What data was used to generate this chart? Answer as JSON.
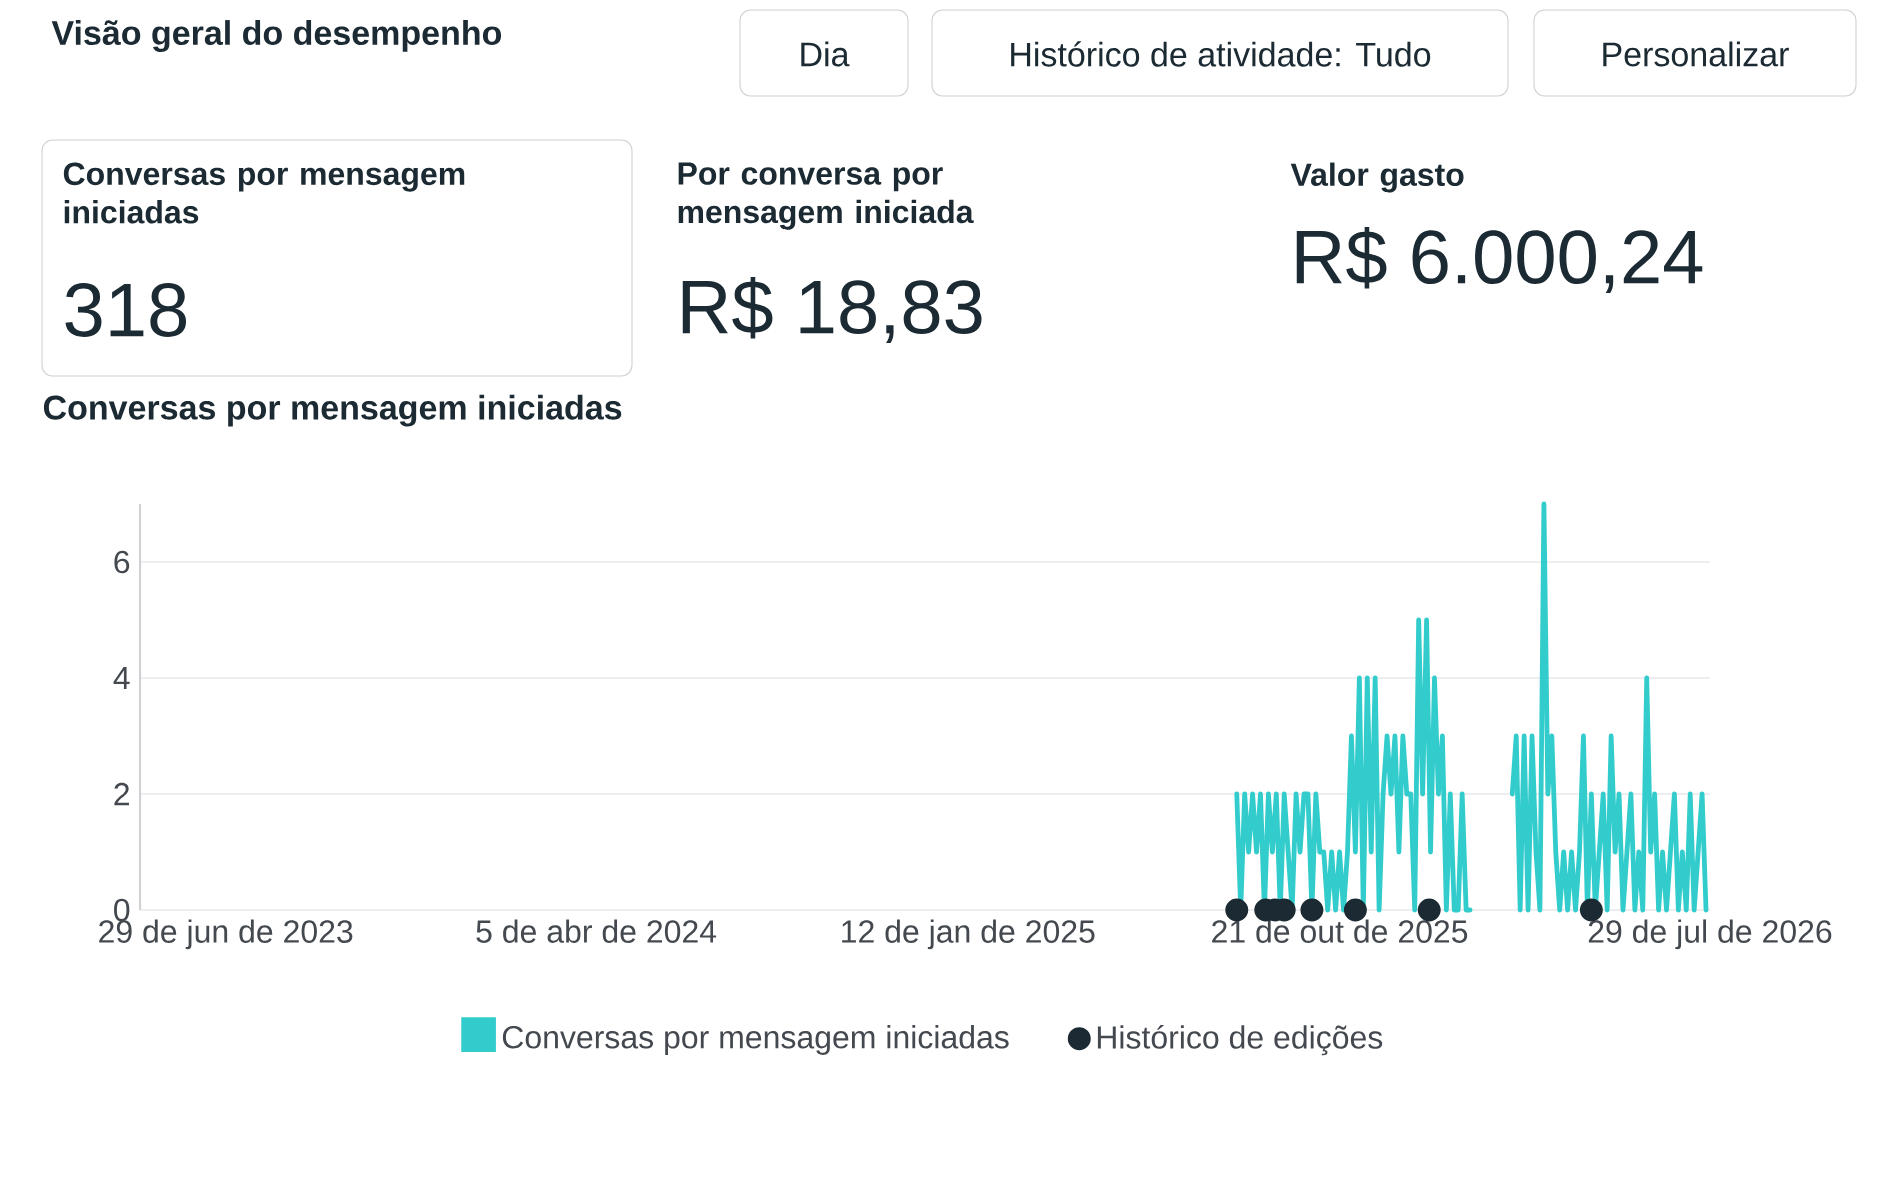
{
  "chart_data": [
    {
      "type": "other",
      "title": "Visão geral do desempenho",
      "annotations": [
        "Dia",
        "Histórico de atividade: Tudo",
        "Personalizar",
        "Conversas por mensagem iniciadas",
        "318",
        "Por conversa por mensagem iniciada",
        "R$ 18,83",
        "Valor gasto",
        "R$ 6.000,24"
      ]
    },
    {
      "type": "line",
      "title": "Conversas por mensagem iniciadas",
      "xlim": [
        "2023-04-25",
        "2026-07-29"
      ],
      "xticks": [
        {
          "value": "2023-06-29",
          "label": "29 de jun de 2023"
        },
        {
          "value": "2024-04-05",
          "label": "5 de abr de 2024"
        },
        {
          "value": "2025-01-12",
          "label": "12 de jan de 2025"
        },
        {
          "value": "2025-10-21",
          "label": "21 de out de 2025"
        },
        {
          "value": "2026-07-29",
          "label": "29 de jul de 2026"
        }
      ],
      "ylim": [
        0,
        7
      ],
      "yticks": [
        0,
        2,
        4,
        6
      ],
      "grid": "y",
      "legend": "bottom",
      "line_style": "solid",
      "series": [
        {
          "name": "Conversas por mensagem iniciadas",
          "type": "line",
          "color": "#33cccc",
          "x": [
            "2025-08-04",
            "2025-08-07",
            "2025-08-10",
            "2025-08-13",
            "2025-08-16",
            "2025-08-19",
            "2025-08-22",
            "2025-08-25",
            "2025-08-28",
            "2025-08-31",
            "2025-09-03",
            "2025-09-06",
            "2025-09-09",
            "2025-09-12",
            "2025-09-15",
            "2025-09-18",
            "2025-09-21",
            "2025-09-24",
            "2025-09-27",
            "2025-09-30",
            "2025-10-03",
            "2025-10-06",
            "2025-10-09",
            "2025-10-12",
            "2025-10-15",
            "2025-10-18",
            "2025-10-21",
            "2025-10-24",
            "2025-10-27",
            "2025-10-30",
            "2025-11-02",
            "2025-11-05",
            "2025-11-08",
            "2025-11-11",
            "2025-11-14",
            "2025-11-17",
            "2025-11-20",
            "2025-11-23",
            "2025-11-26",
            "2025-11-29",
            "2025-12-02",
            "2025-12-05",
            "2025-12-08",
            "2025-12-11",
            "2025-12-14",
            "2025-12-17",
            "2025-12-20",
            "2025-12-23",
            "2025-12-26",
            "2025-12-29",
            "2026-01-01",
            "2026-01-04",
            "2026-01-07",
            "2026-01-10",
            "2026-01-13",
            "2026-01-16",
            "2026-01-19",
            "2026-01-22",
            "2026-01-25",
            "2026-01-28",
            "2026-02-10",
            "2026-03-01",
            "2026-03-04",
            "2026-03-07",
            "2026-03-10",
            "2026-03-13",
            "2026-03-16",
            "2026-03-19",
            "2026-03-22",
            "2026-03-25",
            "2026-03-28",
            "2026-03-31",
            "2026-04-03",
            "2026-04-06",
            "2026-04-09",
            "2026-04-12",
            "2026-04-15",
            "2026-04-18",
            "2026-04-21",
            "2026-04-24",
            "2026-04-27",
            "2026-04-30",
            "2026-05-03",
            "2026-05-06",
            "2026-05-09",
            "2026-05-12",
            "2026-05-15",
            "2026-05-18",
            "2026-05-21",
            "2026-05-24",
            "2026-05-27",
            "2026-05-30",
            "2026-06-02",
            "2026-06-05",
            "2026-06-08",
            "2026-06-11",
            "2026-06-14",
            "2026-06-17",
            "2026-06-20",
            "2026-06-23",
            "2026-06-26",
            "2026-06-29",
            "2026-07-02",
            "2026-07-05",
            "2026-07-08",
            "2026-07-11",
            "2026-07-14",
            "2026-07-17",
            "2026-07-20",
            "2026-07-23",
            "2026-07-26"
          ],
          "values": [
            2,
            0,
            2,
            1,
            2,
            1,
            2,
            0,
            2,
            1,
            2,
            0,
            2,
            1,
            0,
            2,
            1,
            2,
            2,
            0,
            2,
            1,
            1,
            0,
            1,
            0,
            1,
            0,
            1,
            3,
            1,
            4,
            0,
            4,
            1,
            4,
            0,
            2,
            3,
            2,
            3,
            1,
            3,
            2,
            2,
            0,
            5,
            2,
            5,
            1,
            4,
            2,
            3,
            0,
            2,
            0,
            0,
            2,
            0,
            0,
            null,
            2,
            3,
            0,
            3,
            0,
            3,
            1,
            0,
            7,
            2,
            3,
            1,
            0,
            1,
            0,
            1,
            0,
            1,
            3,
            0,
            2,
            0,
            1,
            2,
            0,
            3,
            1,
            2,
            0,
            1,
            2,
            0,
            1,
            0,
            4,
            1,
            2,
            0,
            1,
            0,
            1,
            2,
            0,
            1,
            0,
            2,
            0,
            1,
            2,
            0
          ]
        },
        {
          "name": "Histórico de edições",
          "type": "scatter",
          "color": "#1c2b33",
          "x": [
            "2025-08-04",
            "2025-08-26",
            "2025-09-02",
            "2025-09-09",
            "2025-09-30",
            "2025-11-02",
            "2025-12-28",
            "2026-04-30"
          ],
          "values": [
            0,
            0,
            0,
            0,
            0,
            0,
            0,
            0
          ]
        }
      ]
    }
  ]
}
